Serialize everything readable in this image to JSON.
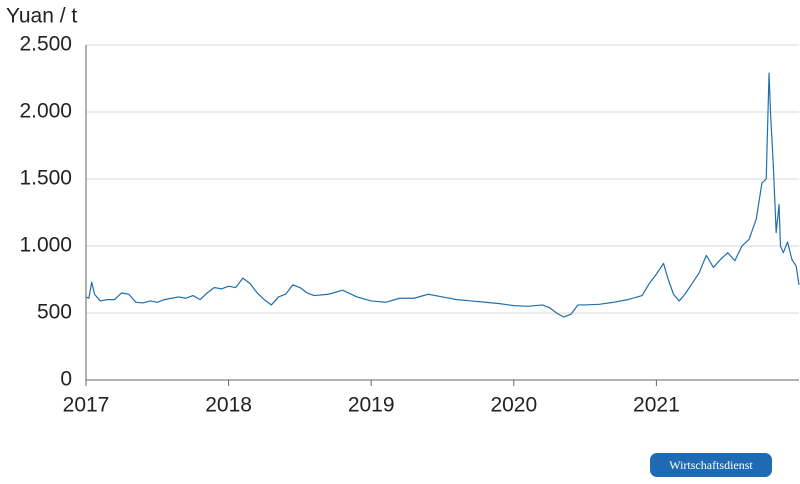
{
  "chart_data": {
    "type": "line",
    "y_label": "Yuan / t",
    "color": "#1f6fb0",
    "grid": true,
    "xlim": [
      2017,
      2022
    ],
    "xticks": [
      2017,
      2018,
      2019,
      2020,
      2021
    ],
    "ylim": [
      0,
      2500
    ],
    "yticks": [
      0,
      {
        "value": 500,
        "label": "500"
      },
      {
        "value": 1000,
        "label": "1.000"
      },
      {
        "value": 1500,
        "label": "1.500"
      },
      {
        "value": 2000,
        "label": "2.000"
      },
      {
        "value": 2500,
        "label": "2.500"
      }
    ],
    "x": [
      2017.0,
      2017.02,
      2017.04,
      2017.06,
      2017.1,
      2017.15,
      2017.2,
      2017.25,
      2017.3,
      2017.35,
      2017.4,
      2017.45,
      2017.5,
      2017.55,
      2017.6,
      2017.65,
      2017.7,
      2017.75,
      2017.8,
      2017.85,
      2017.9,
      2017.95,
      2018.0,
      2018.05,
      2018.1,
      2018.15,
      2018.2,
      2018.25,
      2018.3,
      2018.35,
      2018.4,
      2018.45,
      2018.5,
      2018.55,
      2018.6,
      2018.7,
      2018.8,
      2018.9,
      2019.0,
      2019.1,
      2019.2,
      2019.3,
      2019.4,
      2019.5,
      2019.6,
      2019.7,
      2019.8,
      2019.9,
      2020.0,
      2020.1,
      2020.2,
      2020.25,
      2020.3,
      2020.35,
      2020.4,
      2020.45,
      2020.5,
      2020.6,
      2020.7,
      2020.8,
      2020.9,
      2020.95,
      2021.0,
      2021.05,
      2021.08,
      2021.12,
      2021.16,
      2021.2,
      2021.25,
      2021.3,
      2021.35,
      2021.4,
      2021.45,
      2021.5,
      2021.55,
      2021.6,
      2021.65,
      2021.7,
      2021.74,
      2021.77,
      2021.79,
      2021.8,
      2021.82,
      2021.84,
      2021.86,
      2021.87,
      2021.89,
      2021.92,
      2021.95,
      2021.98,
      2022.0
    ],
    "values": [
      620,
      610,
      730,
      640,
      590,
      600,
      600,
      650,
      640,
      580,
      575,
      590,
      580,
      600,
      610,
      620,
      610,
      630,
      600,
      650,
      690,
      680,
      700,
      690,
      760,
      720,
      650,
      600,
      560,
      620,
      640,
      710,
      690,
      650,
      630,
      640,
      670,
      620,
      590,
      580,
      610,
      610,
      640,
      620,
      600,
      590,
      580,
      570,
      555,
      550,
      560,
      540,
      500,
      470,
      490,
      560,
      560,
      565,
      580,
      600,
      630,
      720,
      790,
      870,
      760,
      640,
      590,
      640,
      720,
      800,
      930,
      840,
      900,
      950,
      890,
      1000,
      1050,
      1200,
      1470,
      1500,
      2290,
      2000,
      1600,
      1100,
      1310,
      1000,
      950,
      1030,
      900,
      850,
      710
    ]
  },
  "badge": "Wirtschaftsdienst"
}
